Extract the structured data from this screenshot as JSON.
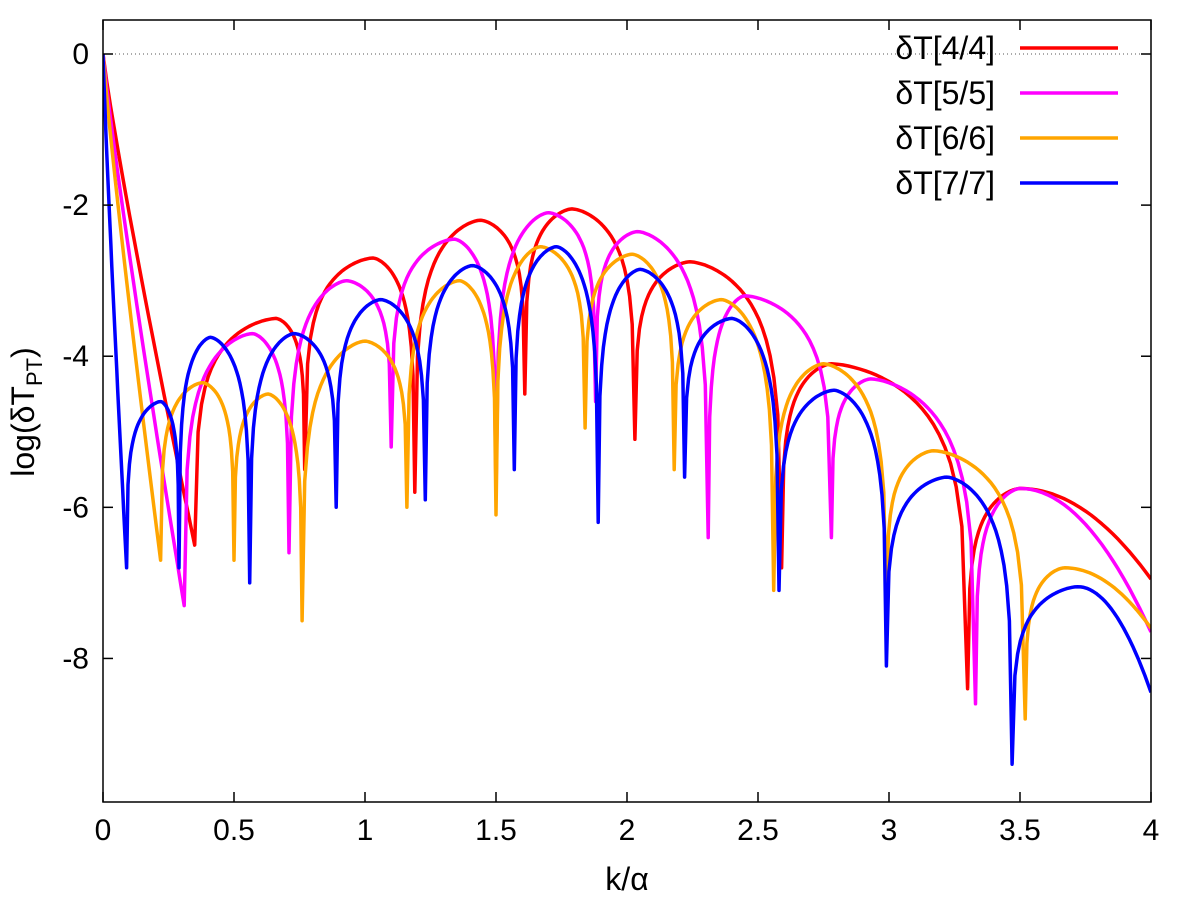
{
  "chart_data": {
    "type": "line",
    "xlabel": "k/α",
    "ylabel": "log(δT",
    "ylabel_sub": "PT",
    "ylabel_close": ")",
    "xlim": [
      0,
      4
    ],
    "ylim": [
      -9.9,
      0.45
    ],
    "x_ticks": [
      0,
      0.5,
      1,
      1.5,
      2,
      2.5,
      3,
      3.5,
      4
    ],
    "x_tick_labels": [
      "0",
      "0.5",
      "1",
      "1.5",
      "2",
      "2.5",
      "3",
      "3.5",
      "4"
    ],
    "y_ticks": [
      0,
      -2,
      -4,
      -6,
      -8
    ],
    "y_tick_labels": [
      "0",
      "-2",
      "-4",
      "-6",
      "-8"
    ],
    "reference_line": 0,
    "grid": false,
    "legend_position": "top-right",
    "series": [
      {
        "name": "δT[4/4]",
        "color": "#ff0000",
        "zeros": [
          0.35,
          0.77,
          1.19,
          1.61,
          2.03,
          2.59,
          3.3
        ],
        "depths": [
          -6.5,
          -5.5,
          -5.8,
          -4.5,
          -5.1,
          -6.8,
          -8.4
        ],
        "peaks": [
          [
            0.66,
            -3.5
          ],
          [
            1.03,
            -2.7
          ],
          [
            1.44,
            -2.2
          ],
          [
            1.79,
            -2.05
          ],
          [
            2.24,
            -2.75
          ],
          [
            2.78,
            -4.1
          ],
          [
            3.5,
            -5.75
          ]
        ],
        "end": -6.95
      },
      {
        "name": "δT[5/5]",
        "color": "#ff00ff",
        "zeros": [
          0.31,
          0.71,
          1.1,
          1.5,
          1.88,
          2.31,
          2.78,
          3.33
        ],
        "depths": [
          -7.3,
          -6.6,
          -5.2,
          -5.8,
          -4.6,
          -6.4,
          -6.4,
          -8.6
        ],
        "peaks": [
          [
            0.57,
            -3.7
          ],
          [
            0.93,
            -3.0
          ],
          [
            1.34,
            -2.45
          ],
          [
            1.7,
            -2.1
          ],
          [
            2.04,
            -2.35
          ],
          [
            2.45,
            -3.2
          ],
          [
            2.93,
            -4.3
          ],
          [
            3.5,
            -5.75
          ]
        ],
        "end": -7.65
      },
      {
        "name": "δT[6/6]",
        "color": "#ffa500",
        "zeros": [
          0.22,
          0.5,
          0.76,
          1.16,
          1.5,
          1.84,
          2.18,
          2.56,
          2.99,
          3.52
        ],
        "depths": [
          -6.7,
          -6.7,
          -7.5,
          -6.0,
          -6.1,
          -4.95,
          -5.5,
          -7.1,
          -7.5,
          -8.8
        ],
        "peaks": [
          [
            0.38,
            -4.35
          ],
          [
            0.63,
            -4.5
          ],
          [
            1.0,
            -3.8
          ],
          [
            1.36,
            -3.0
          ],
          [
            1.67,
            -2.55
          ],
          [
            2.02,
            -2.65
          ],
          [
            2.36,
            -3.25
          ],
          [
            2.75,
            -4.1
          ],
          [
            3.17,
            -5.25
          ],
          [
            3.67,
            -6.8
          ]
        ],
        "end": -7.6
      },
      {
        "name": "δT[7/7]",
        "color": "#0000ff",
        "zeros": [
          0.09,
          0.29,
          0.56,
          0.89,
          1.23,
          1.57,
          1.89,
          2.22,
          2.58,
          2.99,
          3.47
        ],
        "depths": [
          -6.8,
          -6.8,
          -7.0,
          -6.0,
          -5.9,
          -5.5,
          -6.2,
          -5.6,
          -7.1,
          -8.1,
          -9.4
        ],
        "peaks": [
          [
            0.22,
            -4.6
          ],
          [
            0.41,
            -3.75
          ],
          [
            0.73,
            -3.7
          ],
          [
            1.06,
            -3.25
          ],
          [
            1.41,
            -2.8
          ],
          [
            1.73,
            -2.55
          ],
          [
            2.05,
            -2.85
          ],
          [
            2.4,
            -3.5
          ],
          [
            2.79,
            -4.45
          ],
          [
            3.22,
            -5.6
          ],
          [
            3.72,
            -7.05
          ]
        ],
        "end": -8.45
      }
    ]
  }
}
